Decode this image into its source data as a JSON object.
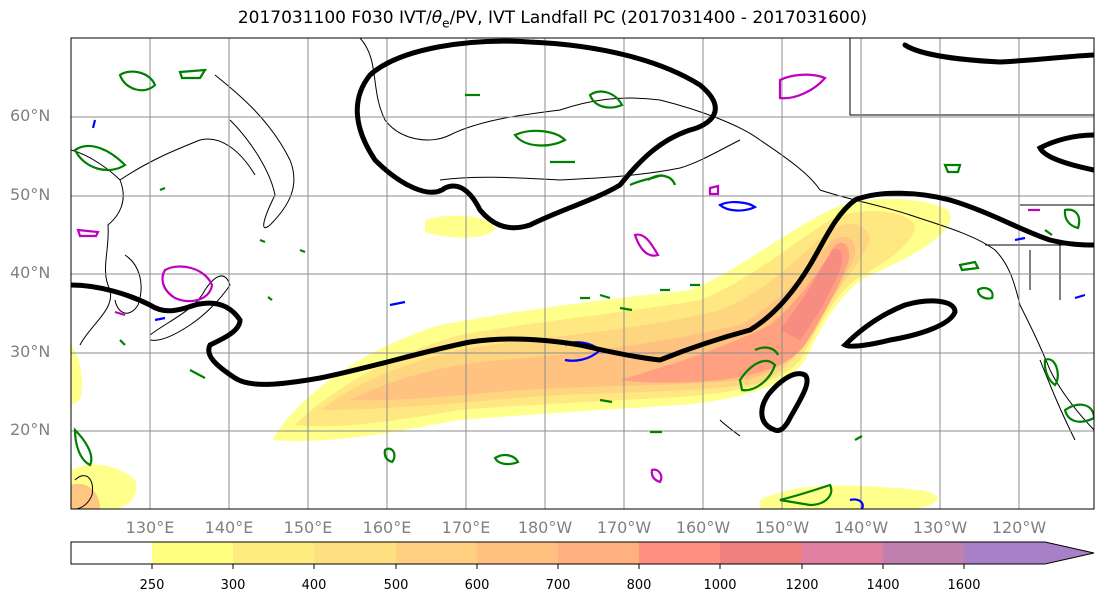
{
  "title": {
    "prefix": "2017031100 F030 IVT/",
    "theta": "θ",
    "theta_sub": "e",
    "suffix": "/PV, IVT Landfall PC (2017031400 - 2017031600)"
  },
  "map": {
    "lat_labels": [
      "60°N",
      "50°N",
      "40°N",
      "30°N",
      "20°N"
    ],
    "lon_labels": [
      "130°E",
      "140°E",
      "150°E",
      "160°E",
      "170°E",
      "180°W",
      "170°W",
      "160°W",
      "150°W",
      "140°W",
      "130°W",
      "120°W"
    ],
    "colors": {
      "pc_contour": "#000000",
      "pv_green": "#008000",
      "pv_blue": "#0000ff",
      "pv_magenta": "#c000c0",
      "coast": "#000000",
      "grid": "#8c8c8c"
    }
  },
  "colorbar": {
    "levels": [
      "250",
      "300",
      "400",
      "500",
      "600",
      "700",
      "800",
      "1000",
      "1200",
      "1400",
      "1600"
    ],
    "colors": [
      "#ffffff",
      "#ffff80",
      "#ffec80",
      "#ffe080",
      "#ffd080",
      "#ffc080",
      "#ffb080",
      "#ff9080",
      "#f08080",
      "#e080a0",
      "#c080b0",
      "#a880c8"
    ]
  }
}
